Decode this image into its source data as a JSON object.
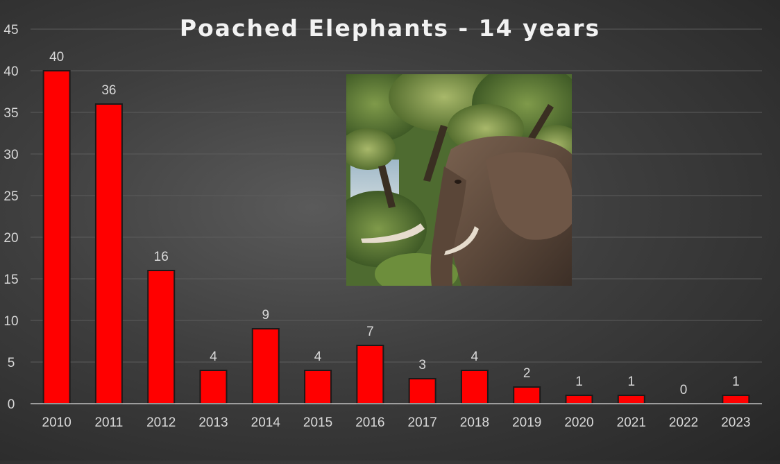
{
  "chart_data": {
    "type": "bar",
    "title": "Poached Elephants - 14 years",
    "xlabel": "",
    "ylabel": "",
    "categories": [
      "2010",
      "2011",
      "2012",
      "2013",
      "2014",
      "2015",
      "2016",
      "2017",
      "2018",
      "2019",
      "2020",
      "2021",
      "2022",
      "2023"
    ],
    "values": [
      40,
      36,
      16,
      4,
      9,
      4,
      7,
      3,
      4,
      2,
      1,
      1,
      0,
      1
    ],
    "ylim": [
      0,
      45
    ],
    "yticks": [
      0,
      5,
      10,
      15,
      20,
      25,
      30,
      35,
      40,
      45
    ],
    "grid": true,
    "legend": "none",
    "data_labels": true,
    "colors": {
      "bar": "#ff0000",
      "bar_outline": "#1a1a1a",
      "text": "#d9d9d9",
      "title": "#f2f2f2",
      "gridline": "#5c5c5c",
      "axis": "#bfbfbf"
    },
    "inset_image": "elephant-photo"
  }
}
